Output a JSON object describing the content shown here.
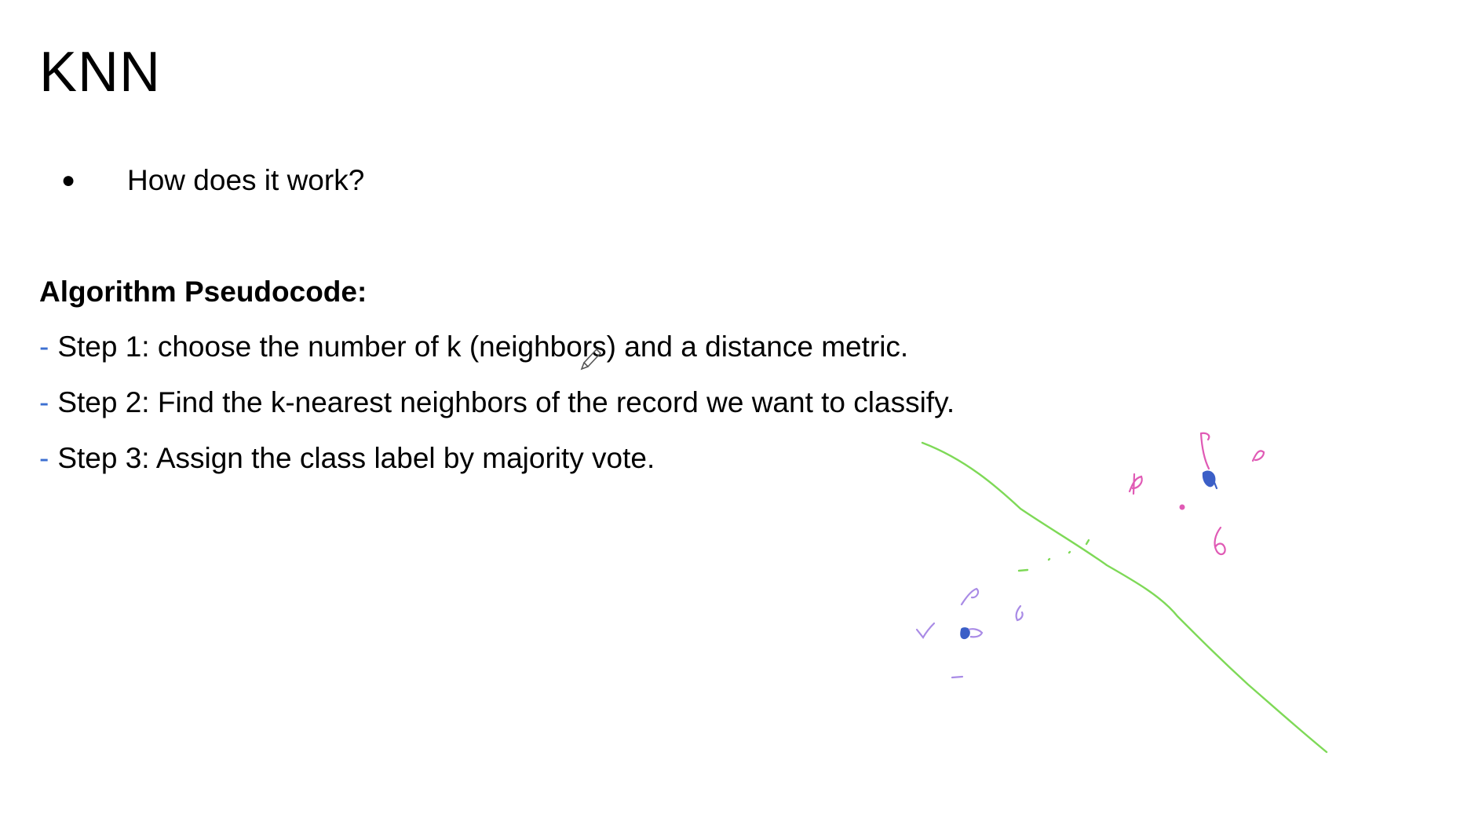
{
  "slide": {
    "title": "KNN",
    "bullets": [
      {
        "marker": "●",
        "text": "How does it work?"
      }
    ],
    "heading": "Algorithm Pseudocode:",
    "steps": [
      {
        "dash": "-",
        "text": "Step 1: choose the number of k (neighbors) and a distance metric."
      },
      {
        "dash": "-",
        "text": "Step 2: Find the k-nearest neighbors of the record we want to classify."
      },
      {
        "dash": "-",
        "text": "Step 3: Assign the class label by majority vote."
      }
    ]
  },
  "annotation_colors": {
    "boundary": "#7ed957",
    "class_a": "#e05ab5",
    "class_b": "#a98be6",
    "query": "#3b5fc7"
  }
}
